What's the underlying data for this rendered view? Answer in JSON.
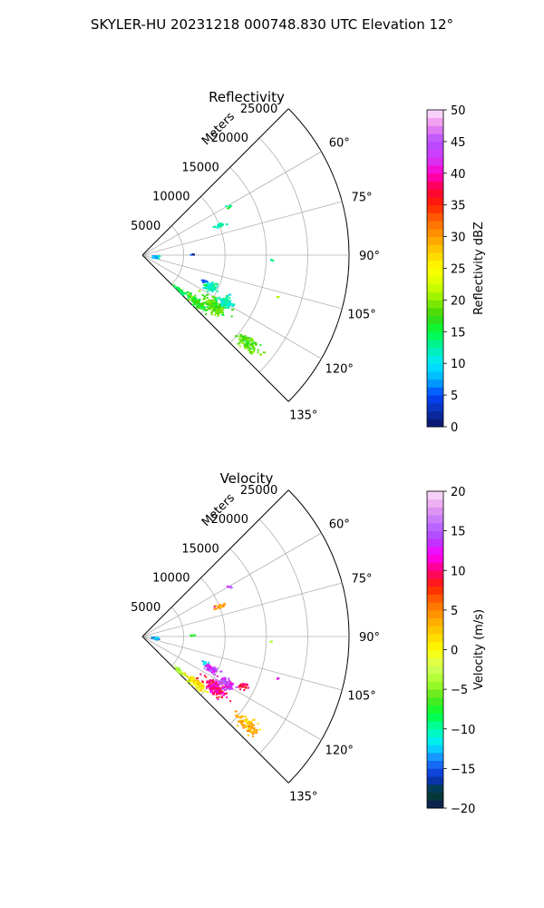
{
  "figure": {
    "title": "SKYLER-HU  20231218  000748.830 UTC Elevation 12°"
  },
  "chart_data": [
    {
      "type": "polar-sector-scatter",
      "title": "Reflectivity",
      "radial_label": "Meters",
      "r_range": [
        0,
        25000
      ],
      "theta_range_deg": [
        45,
        135
      ],
      "r_ticks": [
        5000,
        10000,
        15000,
        20000,
        25000
      ],
      "r_tick_labels": [
        "5000",
        "10000",
        "15000",
        "20000",
        "25000"
      ],
      "theta_ticks": [
        60,
        75,
        90,
        105,
        120,
        135
      ],
      "theta_tick_labels": [
        "60°",
        "75°",
        "90°",
        "105°",
        "120°",
        "135°"
      ],
      "grid": true,
      "colorbar": {
        "label": "Reflectivity dBZ",
        "range": [
          0,
          50
        ],
        "ticks": [
          0,
          5,
          10,
          15,
          20,
          25,
          30,
          35,
          40,
          45,
          50
        ],
        "tick_labels": [
          "0",
          "5",
          "10",
          "15",
          "20",
          "25",
          "30",
          "35",
          "40",
          "45",
          "50"
        ]
      },
      "clusters": [
        {
          "r": 16500,
          "az": 130,
          "value": 18,
          "spread_r": 1500,
          "spread_az": 2.5,
          "n": 90
        },
        {
          "r": 10500,
          "az": 125,
          "value": 18,
          "spread_r": 1500,
          "spread_az": 4,
          "n": 170
        },
        {
          "r": 8500,
          "az": 131,
          "value": 17,
          "spread_r": 1500,
          "spread_az": 2.5,
          "n": 120
        },
        {
          "r": 9000,
          "az": 115,
          "value": 12,
          "spread_r": 900,
          "spread_az": 3,
          "n": 80
        },
        {
          "r": 11500,
          "az": 119,
          "value": 12,
          "spread_r": 1000,
          "spread_az": 3,
          "n": 60
        },
        {
          "r": 6000,
          "az": 133,
          "value": 15,
          "spread_r": 800,
          "spread_az": 1.5,
          "n": 40
        },
        {
          "r": 10000,
          "az": 68,
          "value": 13,
          "spread_r": 600,
          "spread_az": 1.2,
          "n": 30
        },
        {
          "r": 1500,
          "az": 95,
          "value": 9,
          "spread_r": 500,
          "spread_az": 6,
          "n": 25
        },
        {
          "r": 8000,
          "az": 112,
          "value": 4,
          "spread_r": 300,
          "spread_az": 2,
          "n": 8
        },
        {
          "r": 12000,
          "az": 60,
          "value": 14,
          "spread_r": 300,
          "spread_az": 1,
          "n": 6
        },
        {
          "r": 15500,
          "az": 92,
          "value": 13,
          "spread_r": 200,
          "spread_az": 0.5,
          "n": 3
        },
        {
          "r": 17000,
          "az": 107,
          "value": 20,
          "spread_r": 100,
          "spread_az": 0.3,
          "n": 2
        },
        {
          "r": 6000,
          "az": 88,
          "value": 4,
          "spread_r": 300,
          "spread_az": 1,
          "n": 4
        }
      ]
    },
    {
      "type": "polar-sector-scatter",
      "title": "Velocity",
      "radial_label": "Meters",
      "r_range": [
        0,
        25000
      ],
      "theta_range_deg": [
        45,
        135
      ],
      "r_ticks": [
        5000,
        10000,
        15000,
        20000,
        25000
      ],
      "r_tick_labels": [
        "5000",
        "10000",
        "15000",
        "20000",
        "25000"
      ],
      "theta_ticks": [
        60,
        75,
        90,
        105,
        120,
        135
      ],
      "theta_tick_labels": [
        "60°",
        "75°",
        "90°",
        "105°",
        "120°",
        "135°"
      ],
      "grid": true,
      "colorbar": {
        "label": "Velocity (m/s)",
        "range": [
          -20,
          20
        ],
        "ticks": [
          -20,
          -15,
          -10,
          -5,
          0,
          5,
          10,
          15,
          20
        ],
        "tick_labels": [
          "−20",
          "−15",
          "−10",
          "−5",
          "0",
          "5",
          "10",
          "15",
          "20"
        ]
      },
      "clusters": [
        {
          "r": 16500,
          "az": 130,
          "value": 3,
          "spread_r": 1500,
          "spread_az": 2.5,
          "n": 90
        },
        {
          "r": 10500,
          "az": 125,
          "value": 10,
          "spread_r": 1500,
          "spread_az": 4,
          "n": 170
        },
        {
          "r": 8500,
          "az": 131,
          "value": 1,
          "spread_r": 1500,
          "spread_az": 2.5,
          "n": 120
        },
        {
          "r": 9000,
          "az": 115,
          "value": 14,
          "spread_r": 900,
          "spread_az": 3,
          "n": 80
        },
        {
          "r": 11500,
          "az": 119,
          "value": 14,
          "spread_r": 1000,
          "spread_az": 3,
          "n": 60
        },
        {
          "r": 6000,
          "az": 133,
          "value": -4,
          "spread_r": 800,
          "spread_az": 1.5,
          "n": 40
        },
        {
          "r": 10000,
          "az": 68,
          "value": 5,
          "spread_r": 600,
          "spread_az": 1.2,
          "n": 30
        },
        {
          "r": 1500,
          "az": 95,
          "value": -13,
          "spread_r": 500,
          "spread_az": 6,
          "n": 25
        },
        {
          "r": 8000,
          "az": 112,
          "value": -12,
          "spread_r": 300,
          "spread_az": 2,
          "n": 8
        },
        {
          "r": 12000,
          "az": 60,
          "value": 14,
          "spread_r": 300,
          "spread_az": 1,
          "n": 6
        },
        {
          "r": 15500,
          "az": 92,
          "value": -4,
          "spread_r": 200,
          "spread_az": 0.5,
          "n": 3
        },
        {
          "r": 17000,
          "az": 107,
          "value": 12,
          "spread_r": 100,
          "spread_az": 0.3,
          "n": 2
        },
        {
          "r": 6000,
          "az": 88,
          "value": -7,
          "spread_r": 300,
          "spread_az": 1,
          "n": 4
        },
        {
          "r": 13500,
          "az": 116,
          "value": 9,
          "spread_r": 600,
          "spread_az": 2,
          "n": 20
        }
      ]
    }
  ]
}
